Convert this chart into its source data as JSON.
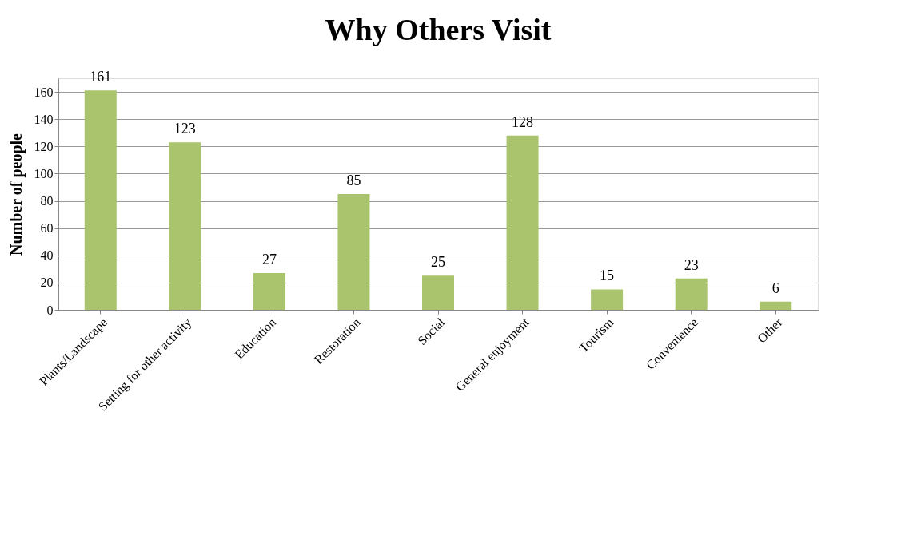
{
  "chart_data": {
    "type": "bar",
    "title": "Why Others Visit",
    "ylabel": "Number of people",
    "categories": [
      "Plants/Landscape",
      "Setting for other activity",
      "Education",
      "Restoration",
      "Social",
      "General enjoyment",
      "Tourism",
      "Convenience",
      "Other"
    ],
    "values": [
      161,
      123,
      27,
      85,
      25,
      128,
      15,
      23,
      6
    ],
    "color": "#a9c46c",
    "ylim": [
      0,
      170
    ],
    "yticks": [
      0,
      20,
      40,
      60,
      80,
      100,
      120,
      140,
      160
    ],
    "grid": "y",
    "data_labels": true
  }
}
